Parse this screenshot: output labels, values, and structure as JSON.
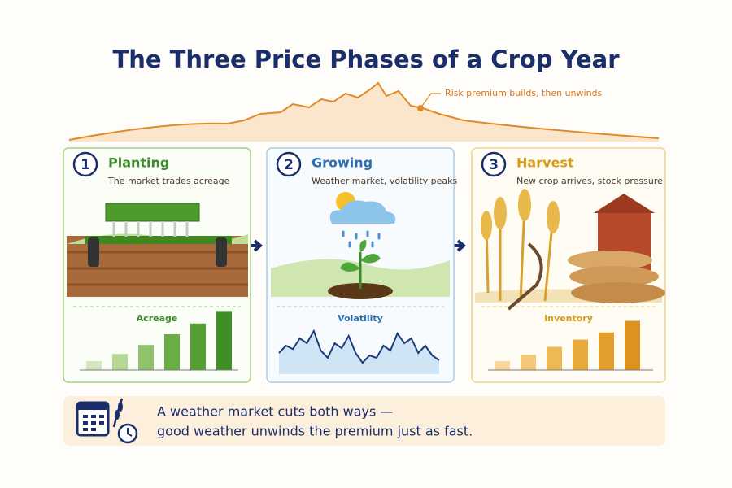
{
  "header": {
    "title": "The Three Price Phases of a Crop Year",
    "annotation": "Risk premium builds, then unwinds"
  },
  "phases": [
    {
      "number": "1",
      "title": "Planting",
      "subtitle": "The market trades acreage",
      "chart": {
        "type": "bar",
        "label": "Acreage",
        "values": [
          10,
          18,
          28,
          40,
          52,
          66
        ],
        "colors": [
          "#d3e6bf",
          "#b5d695",
          "#8fc26a",
          "#6aad45",
          "#55a032",
          "#3f8f26"
        ]
      }
    },
    {
      "number": "2",
      "title": "Growing",
      "subtitle": "Weather market, volatility peaks",
      "chart": {
        "type": "line",
        "label": "Volatility",
        "color": "#1f3a7a",
        "values": [
          40,
          55,
          48,
          70,
          60,
          85,
          45,
          30,
          60,
          50,
          75,
          40,
          20,
          35,
          30,
          55,
          45,
          80,
          60,
          70,
          40,
          55,
          35,
          25
        ]
      }
    },
    {
      "number": "3",
      "title": "Harvest",
      "subtitle": "New crop arrives, stock pressure",
      "chart": {
        "type": "bar",
        "label": "Inventory",
        "values": [
          10,
          17,
          26,
          34,
          42,
          55
        ],
        "colors": [
          "#f7d79a",
          "#f3c876",
          "#eeb955",
          "#e9aa3c",
          "#e39f2c",
          "#dc921c"
        ]
      }
    }
  ],
  "footer": {
    "lines": [
      "A weather market cuts both ways —",
      "good weather unwinds the premium just as fast."
    ]
  }
}
